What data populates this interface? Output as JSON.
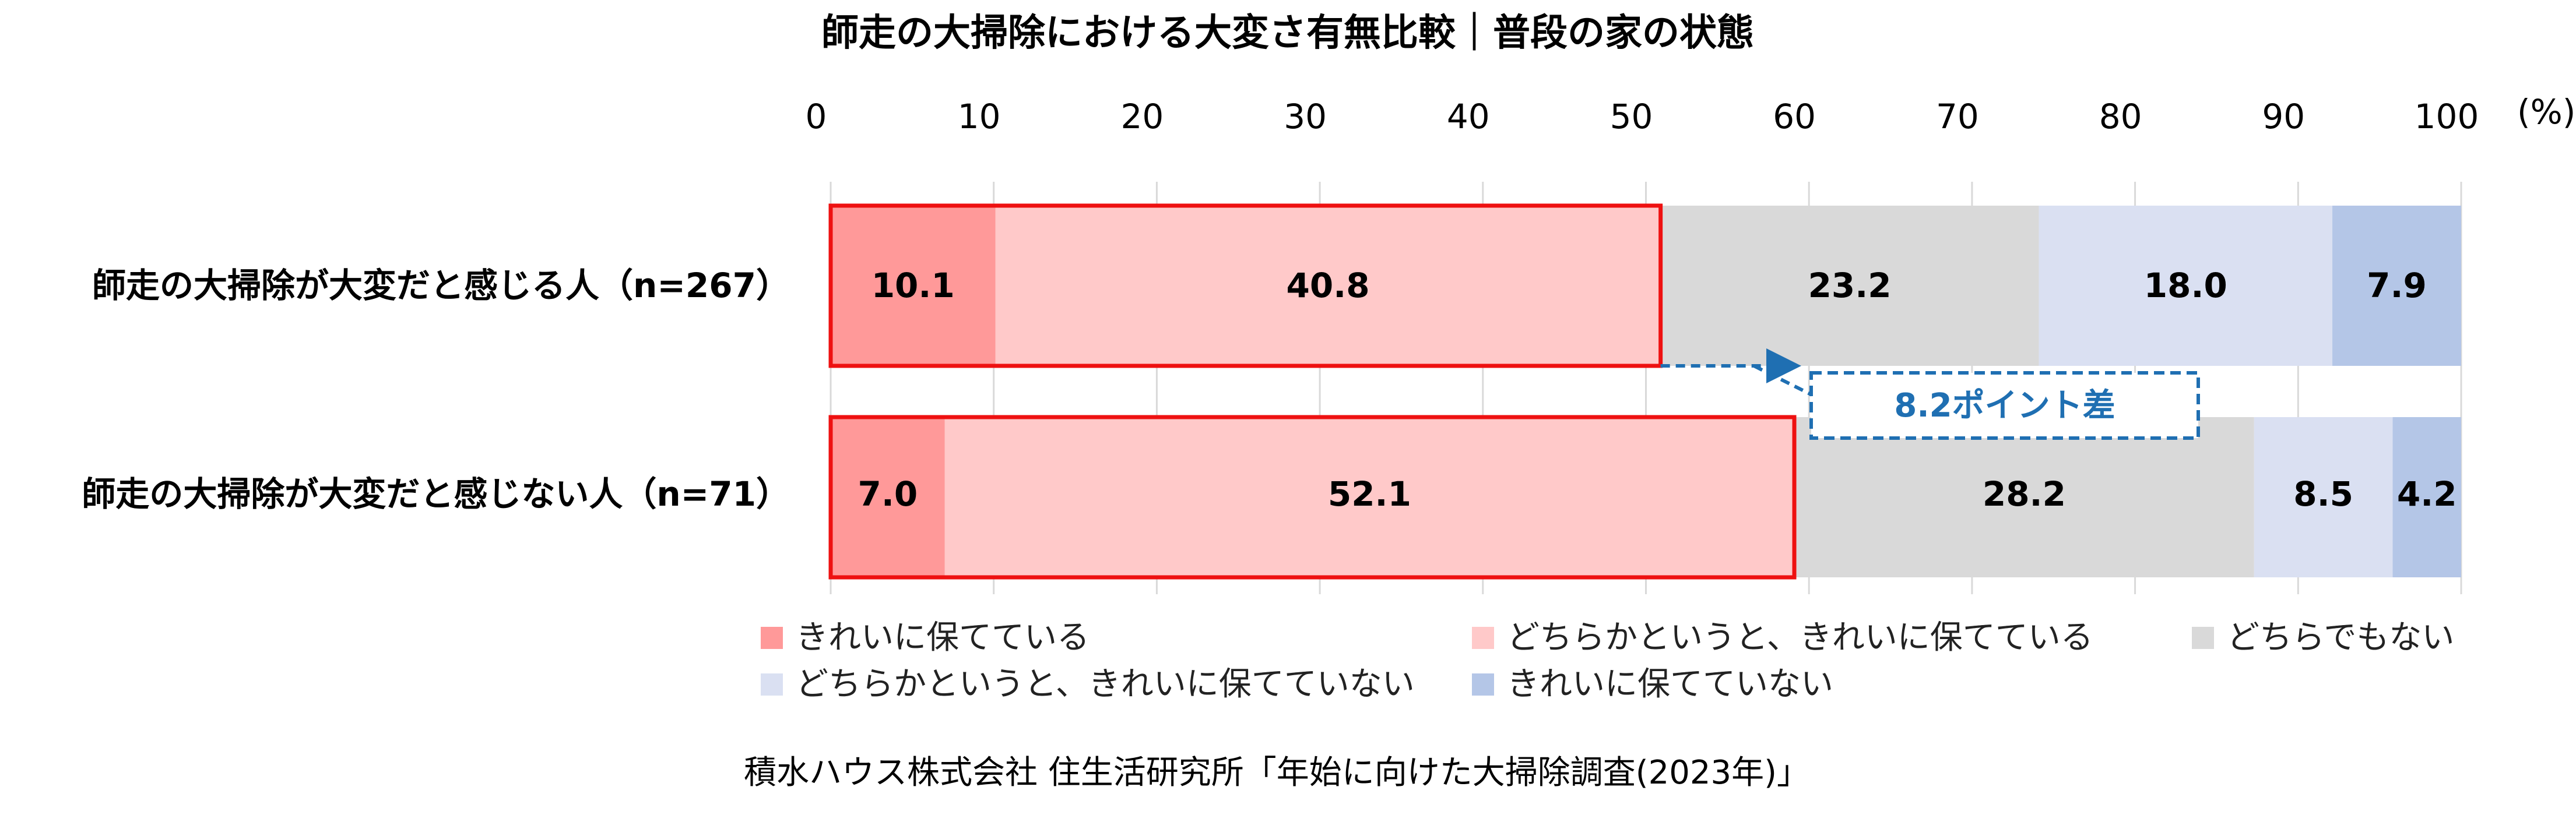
{
  "chart_data": {
    "type": "bar",
    "orientation": "horizontal",
    "stacked": true,
    "title": "師走の大掃除における大変さ有無比較｜普段の家の状態",
    "x_unit": "(%)",
    "xlim": [
      0,
      100
    ],
    "x_ticks": [
      "0",
      "10",
      "20",
      "30",
      "40",
      "50",
      "60",
      "70",
      "80",
      "90",
      "100"
    ],
    "grid": true,
    "legend_position": "bottom",
    "categories": [
      "師走の大掃除が大変だと感じる人（n=267）",
      "師走の大掃除が大変だと感じない人（n=71）"
    ],
    "series": [
      {
        "name": "きれいに保てている",
        "color": "#ff9999",
        "values": [
          10.1,
          7.0
        ]
      },
      {
        "name": "どちらかというと、きれいに保てている",
        "color": "#ffc9c9",
        "values": [
          40.8,
          52.1
        ]
      },
      {
        "name": "どちらでもない",
        "color": "#d9d9d9",
        "values": [
          23.2,
          28.2
        ]
      },
      {
        "name": "どちらかというと、きれいに保てていない",
        "color": "#dae0f2",
        "values": [
          18.0,
          8.5
        ]
      },
      {
        "name": "きれいに保てていない",
        "color": "#b4c6e7",
        "values": [
          7.9,
          4.2
        ]
      }
    ],
    "data_labels": [
      [
        "10.1",
        "40.8",
        "23.2",
        "18.0",
        "7.9"
      ],
      [
        "7.0",
        "52.1",
        "28.2",
        "8.5",
        "4.2"
      ]
    ],
    "annotation": "8.2ポイント差",
    "annotation_color": "#1f6fb2",
    "highlight_color": "#ee1111",
    "source": "積水ハウス株式会社 住生活研究所「年始に向けた大掃除調査(2023年)」"
  }
}
